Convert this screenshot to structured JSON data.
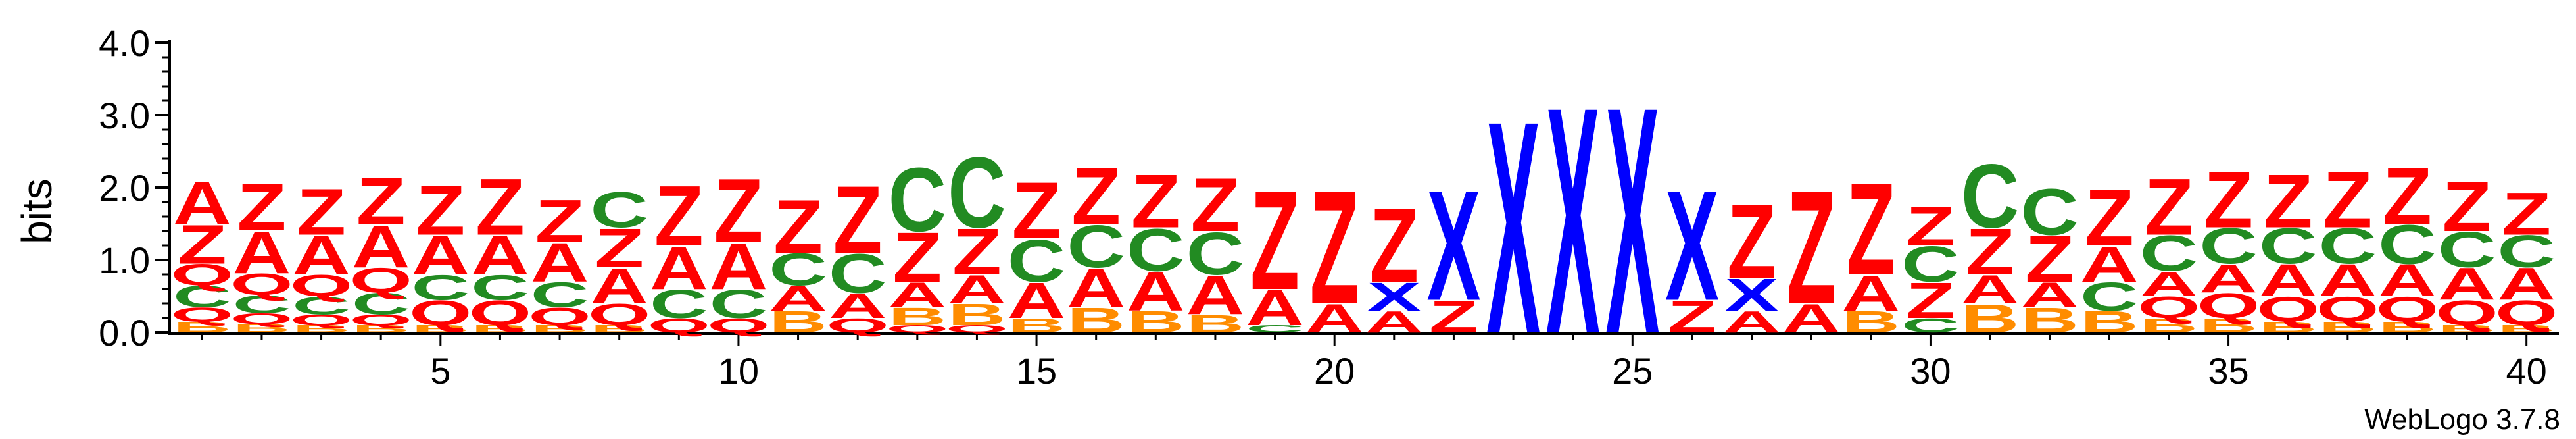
{
  "chart_data": {
    "type": "sequence-logo",
    "ylabel": "bits",
    "ylim": [
      0,
      4.0
    ],
    "yticks": [
      "0.0",
      "1.0",
      "2.0",
      "3.0",
      "4.0"
    ],
    "xlim": [
      1,
      40
    ],
    "xticks": [
      "5",
      "10",
      "15",
      "20",
      "25",
      "30",
      "35",
      "40"
    ],
    "footer": "WebLogo 3.7.8",
    "colors": {
      "Z": "#ff0000",
      "A": "#ff0000",
      "X": "#0000ff",
      "C": "#228b22",
      "Q": "#ff0000",
      "B": "#ff8c00"
    },
    "positions": [
      [
        [
          "B",
          0.15
        ],
        [
          "Q",
          0.2
        ],
        [
          "C",
          0.3
        ],
        [
          "Q",
          0.3
        ],
        [
          "Z",
          0.55
        ],
        [
          "A",
          0.6
        ]
      ],
      [
        [
          "B",
          0.12
        ],
        [
          "Q",
          0.15
        ],
        [
          "C",
          0.25
        ],
        [
          "Q",
          0.3
        ],
        [
          "A",
          0.6
        ],
        [
          "Z",
          0.65
        ]
      ],
      [
        [
          "B",
          0.1
        ],
        [
          "Q",
          0.15
        ],
        [
          "C",
          0.25
        ],
        [
          "Q",
          0.3
        ],
        [
          "A",
          0.55
        ],
        [
          "Z",
          0.65
        ]
      ],
      [
        [
          "B",
          0.1
        ],
        [
          "Q",
          0.15
        ],
        [
          "C",
          0.3
        ],
        [
          "Q",
          0.35
        ],
        [
          "A",
          0.6
        ],
        [
          "Z",
          0.65
        ]
      ],
      [
        [
          "B",
          0.1
        ],
        [
          "Q",
          0.35
        ],
        [
          "C",
          0.35
        ],
        [
          "A",
          0.55
        ],
        [
          "Z",
          0.7
        ]
      ],
      [
        [
          "B",
          0.1
        ],
        [
          "Q",
          0.35
        ],
        [
          "C",
          0.35
        ],
        [
          "A",
          0.55
        ],
        [
          "Z",
          0.8
        ]
      ],
      [
        [
          "B",
          0.1
        ],
        [
          "Q",
          0.25
        ],
        [
          "C",
          0.35
        ],
        [
          "A",
          0.55
        ],
        [
          "Z",
          0.6
        ]
      ],
      [
        [
          "B",
          0.1
        ],
        [
          "Q",
          0.3
        ],
        [
          "A",
          0.5
        ],
        [
          "Z",
          0.55
        ],
        [
          "C",
          0.5
        ]
      ],
      [
        [
          "Q",
          0.2
        ],
        [
          "C",
          0.4
        ],
        [
          "A",
          0.6
        ],
        [
          "Z",
          0.85
        ]
      ],
      [
        [
          "Q",
          0.2
        ],
        [
          "C",
          0.4
        ],
        [
          "A",
          0.65
        ],
        [
          "Z",
          0.9
        ]
      ],
      [
        [
          "B",
          0.3
        ],
        [
          "A",
          0.35
        ],
        [
          "C",
          0.45
        ],
        [
          "Z",
          0.75
        ]
      ],
      [
        [
          "Q",
          0.2
        ],
        [
          "A",
          0.35
        ],
        [
          "C",
          0.55
        ],
        [
          "Z",
          0.95
        ]
      ],
      [
        [
          "Q",
          0.1
        ],
        [
          "B",
          0.25
        ],
        [
          "A",
          0.35
        ],
        [
          "Z",
          0.7
        ],
        [
          "C",
          0.9
        ]
      ],
      [
        [
          "Q",
          0.1
        ],
        [
          "B",
          0.3
        ],
        [
          "A",
          0.4
        ],
        [
          "Z",
          0.65
        ],
        [
          "C",
          1.0
        ]
      ],
      [
        [
          "B",
          0.2
        ],
        [
          "A",
          0.5
        ],
        [
          "C",
          0.6
        ],
        [
          "Z",
          0.8
        ]
      ],
      [
        [
          "B",
          0.35
        ],
        [
          "A",
          0.55
        ],
        [
          "C",
          0.6
        ],
        [
          "Z",
          0.8
        ]
      ],
      [
        [
          "B",
          0.3
        ],
        [
          "A",
          0.55
        ],
        [
          "C",
          0.6
        ],
        [
          "Z",
          0.75
        ]
      ],
      [
        [
          "B",
          0.25
        ],
        [
          "A",
          0.55
        ],
        [
          "C",
          0.6
        ],
        [
          "Z",
          0.75
        ]
      ],
      [
        [
          "C",
          0.1
        ],
        [
          "A",
          0.5
        ],
        [
          "Z",
          1.4
        ]
      ],
      [
        [
          "A",
          0.4
        ],
        [
          "Z",
          1.6
        ]
      ],
      [
        [
          "A",
          0.3
        ],
        [
          "X",
          0.4
        ],
        [
          "Z",
          1.05
        ]
      ],
      [
        [
          "Z",
          0.45
        ],
        [
          "X",
          1.55
        ]
      ],
      [
        [
          "X",
          3.0
        ]
      ],
      [
        [
          "X",
          3.2
        ]
      ],
      [
        [
          "X",
          3.2
        ]
      ],
      [
        [
          "Z",
          0.45
        ],
        [
          "X",
          1.55
        ]
      ],
      [
        [
          "A",
          0.3
        ],
        [
          "X",
          0.45
        ],
        [
          "Z",
          1.05
        ]
      ],
      [
        [
          "A",
          0.4
        ],
        [
          "Z",
          1.6
        ]
      ],
      [
        [
          "B",
          0.3
        ],
        [
          "A",
          0.5
        ],
        [
          "Z",
          1.3
        ]
      ],
      [
        [
          "C",
          0.2
        ],
        [
          "Z",
          0.5
        ],
        [
          "C",
          0.5
        ],
        [
          "Z",
          0.55
        ]
      ],
      [
        [
          "B",
          0.4
        ],
        [
          "A",
          0.4
        ],
        [
          "Z",
          0.65
        ],
        [
          "C",
          0.9
        ]
      ],
      [
        [
          "B",
          0.35
        ],
        [
          "A",
          0.35
        ],
        [
          "Z",
          0.65
        ],
        [
          "C",
          0.65
        ]
      ],
      [
        [
          "B",
          0.3
        ],
        [
          "C",
          0.4
        ],
        [
          "A",
          0.5
        ],
        [
          "Z",
          0.8
        ]
      ],
      [
        [
          "B",
          0.2
        ],
        [
          "Q",
          0.3
        ],
        [
          "A",
          0.35
        ],
        [
          "C",
          0.5
        ],
        [
          "Z",
          0.8
        ]
      ],
      [
        [
          "B",
          0.2
        ],
        [
          "Q",
          0.35
        ],
        [
          "A",
          0.4
        ],
        [
          "C",
          0.5
        ],
        [
          "Z",
          0.8
        ]
      ],
      [
        [
          "B",
          0.15
        ],
        [
          "Q",
          0.35
        ],
        [
          "A",
          0.45
        ],
        [
          "C",
          0.5
        ],
        [
          "Z",
          0.75
        ]
      ],
      [
        [
          "B",
          0.15
        ],
        [
          "Q",
          0.35
        ],
        [
          "A",
          0.45
        ],
        [
          "C",
          0.5
        ],
        [
          "Z",
          0.8
        ]
      ],
      [
        [
          "B",
          0.15
        ],
        [
          "Q",
          0.35
        ],
        [
          "A",
          0.45
        ],
        [
          "C",
          0.55
        ],
        [
          "Z",
          0.8
        ]
      ],
      [
        [
          "B",
          0.1
        ],
        [
          "Q",
          0.35
        ],
        [
          "A",
          0.45
        ],
        [
          "C",
          0.5
        ],
        [
          "Z",
          0.7
        ]
      ],
      [
        [
          "B",
          0.1
        ],
        [
          "Q",
          0.35
        ],
        [
          "A",
          0.45
        ],
        [
          "C",
          0.45
        ],
        [
          "Z",
          0.6
        ]
      ]
    ]
  }
}
